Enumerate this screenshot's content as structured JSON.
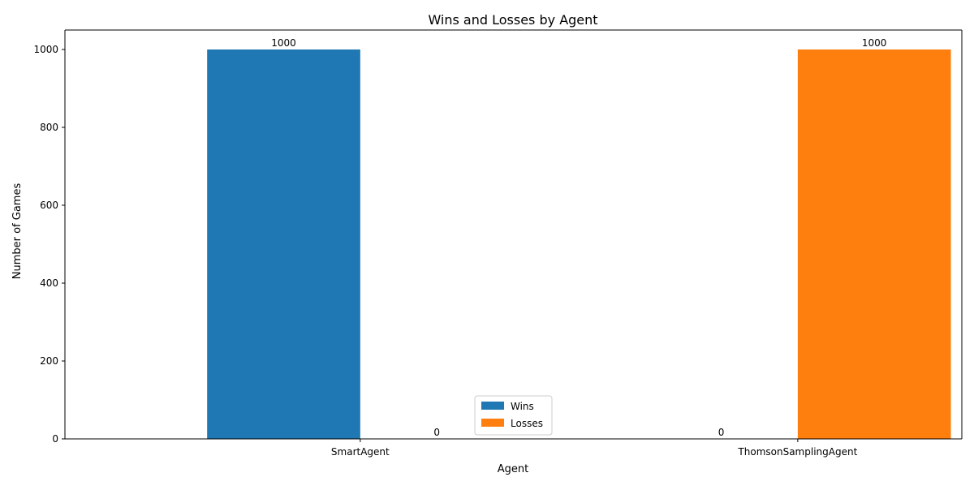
{
  "chart_data": {
    "type": "bar",
    "title": "Wins and Losses by Agent",
    "xlabel": "Agent",
    "ylabel": "Number of Games",
    "categories": [
      "SmartAgent",
      "ThomsonSamplingAgent"
    ],
    "series": [
      {
        "name": "Wins",
        "values": [
          1000,
          0
        ],
        "color": "#1f77b4"
      },
      {
        "name": "Losses",
        "values": [
          0,
          1000
        ],
        "color": "#ff7f0e"
      }
    ],
    "ylim": [
      0,
      1050
    ],
    "yticks": [
      0,
      200,
      400,
      600,
      800,
      1000
    ],
    "grid": false,
    "legend_position": "bottom-center"
  }
}
